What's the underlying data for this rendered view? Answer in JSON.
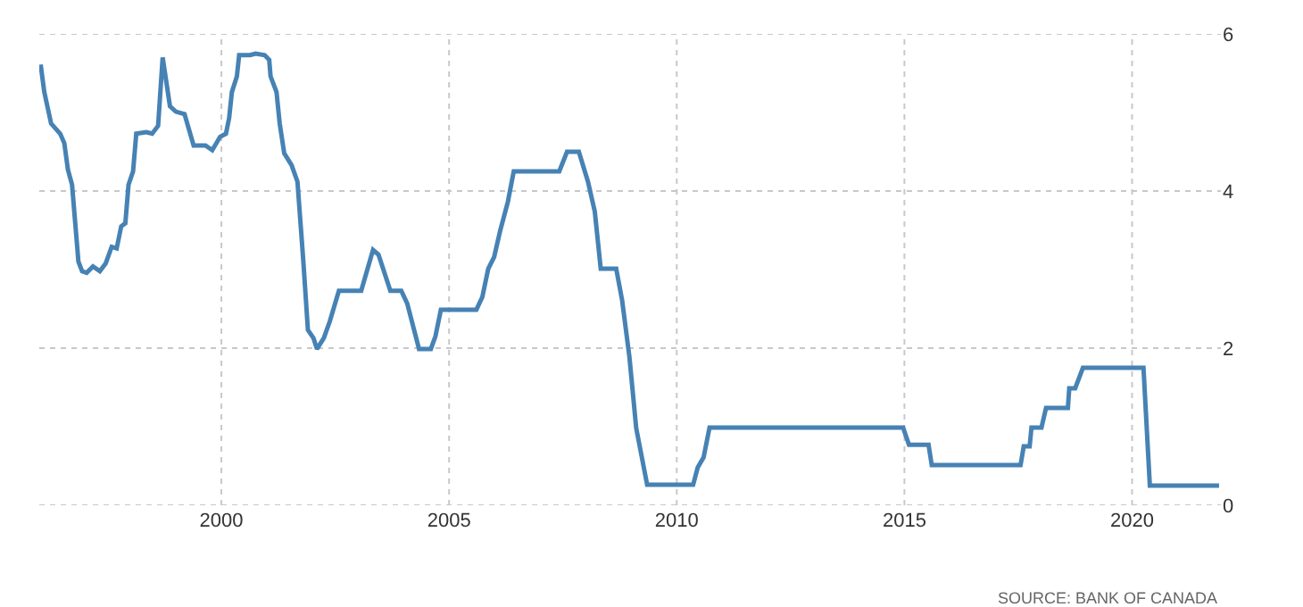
{
  "chart_data": {
    "type": "line",
    "x": [
      1996.03,
      1996.11,
      1996.26,
      1996.46,
      1996.55,
      1996.63,
      1996.72,
      1996.86,
      1996.94,
      1997.04,
      1997.18,
      1997.33,
      1997.46,
      1997.59,
      1997.7,
      1997.8,
      1997.89,
      1997.96,
      1998.06,
      1998.13,
      1998.35,
      1998.48,
      1998.61,
      1998.71,
      1998.87,
      1999.0,
      1999.19,
      1999.39,
      1999.65,
      1999.8,
      1999.97,
      2000.1,
      2000.17,
      2000.23,
      2000.34,
      2000.39,
      2000.63,
      2000.75,
      2000.95,
      2001.05,
      2001.08,
      2001.21,
      2001.28,
      2001.38,
      2001.54,
      2001.67,
      2001.8,
      2001.9,
      2002.02,
      2002.1,
      2002.25,
      2002.38,
      2002.58,
      2003.07,
      2003.33,
      2003.45,
      2003.71,
      2003.95,
      2004.08,
      2004.34,
      2004.6,
      2004.7,
      2004.82,
      2005.6,
      2005.73,
      2005.86,
      2005.99,
      2006.12,
      2006.29,
      2006.42,
      2007.42,
      2007.59,
      2007.85,
      2008.05,
      2008.2,
      2008.33,
      2008.67,
      2008.8,
      2008.96,
      2009.11,
      2009.35,
      2010.36,
      2010.46,
      2010.59,
      2010.72,
      2014.97,
      2015.1,
      2015.53,
      2015.6,
      2017.55,
      2017.62,
      2017.75,
      2017.79,
      2018.01,
      2018.11,
      2018.59,
      2018.62,
      2018.75,
      2018.92,
      2020.25,
      2020.39,
      2021.91
    ],
    "series": [
      {
        "color": "#4682b4",
        "values": [
          5.61,
          5.26,
          4.86,
          4.73,
          4.61,
          4.27,
          4.08,
          3.1,
          2.98,
          2.96,
          3.04,
          2.98,
          3.08,
          3.29,
          3.27,
          3.55,
          3.59,
          4.08,
          4.25,
          4.73,
          4.75,
          4.73,
          4.83,
          5.7,
          5.08,
          5.01,
          4.98,
          4.58,
          4.58,
          4.52,
          4.69,
          4.73,
          4.93,
          5.26,
          5.46,
          5.73,
          5.73,
          5.75,
          5.73,
          5.67,
          5.46,
          5.26,
          4.86,
          4.48,
          4.33,
          4.12,
          3.1,
          2.23,
          2.13,
          1.99,
          2.13,
          2.34,
          2.73,
          2.73,
          3.25,
          3.19,
          2.73,
          2.73,
          2.57,
          1.99,
          1.99,
          2.15,
          2.49,
          2.49,
          2.65,
          3.01,
          3.16,
          3.49,
          3.86,
          4.25,
          4.25,
          4.5,
          4.5,
          4.12,
          3.74,
          3.01,
          3.01,
          2.61,
          1.89,
          0.98,
          0.26,
          0.26,
          0.48,
          0.61,
          0.99,
          0.99,
          0.77,
          0.77,
          0.51,
          0.51,
          0.75,
          0.75,
          0.99,
          0.99,
          1.24,
          1.24,
          1.49,
          1.49,
          1.75,
          1.75,
          0.25,
          0.25
        ]
      }
    ],
    "xlim": [
      1996.0,
      2021.95
    ],
    "ylim": [
      0,
      6
    ],
    "xticks": [
      2000,
      2005,
      2010,
      2015,
      2020
    ],
    "yticks": [
      0,
      2,
      4,
      6
    ],
    "grid": true,
    "marker": "none",
    "line_style": "solid",
    "annotations": [
      "SOURCE: BANK OF CANADA"
    ]
  }
}
